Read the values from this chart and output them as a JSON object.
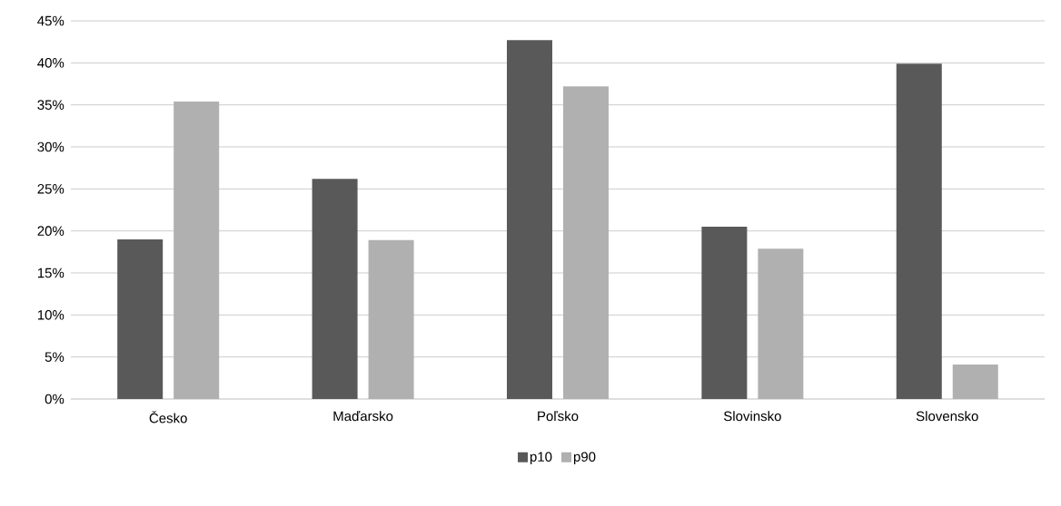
{
  "chart_data": {
    "type": "bar",
    "categories": [
      "Česko",
      "Maďarsko",
      "Poľsko",
      "Slovinsko",
      "Slovensko"
    ],
    "series": [
      {
        "name": "p10",
        "color": "#595959",
        "values": [
          19.0,
          26.2,
          42.7,
          20.5,
          39.9
        ]
      },
      {
        "name": "p90",
        "color": "#b0b0b0",
        "values": [
          35.4,
          18.9,
          37.2,
          17.9,
          4.1
        ]
      }
    ],
    "ylim": [
      0,
      45
    ],
    "yticks": [
      {
        "value": 0,
        "label": "0%"
      },
      {
        "value": 5,
        "label": "5%"
      },
      {
        "value": 10,
        "label": "10%"
      },
      {
        "value": 15,
        "label": "15%"
      },
      {
        "value": 20,
        "label": "20%"
      },
      {
        "value": 25,
        "label": "25%"
      },
      {
        "value": 30,
        "label": "30%"
      },
      {
        "value": 35,
        "label": "35%"
      },
      {
        "value": 40,
        "label": "40%"
      },
      {
        "value": 45,
        "label": "45%"
      }
    ],
    "grid": "y",
    "legend": "bottom"
  }
}
